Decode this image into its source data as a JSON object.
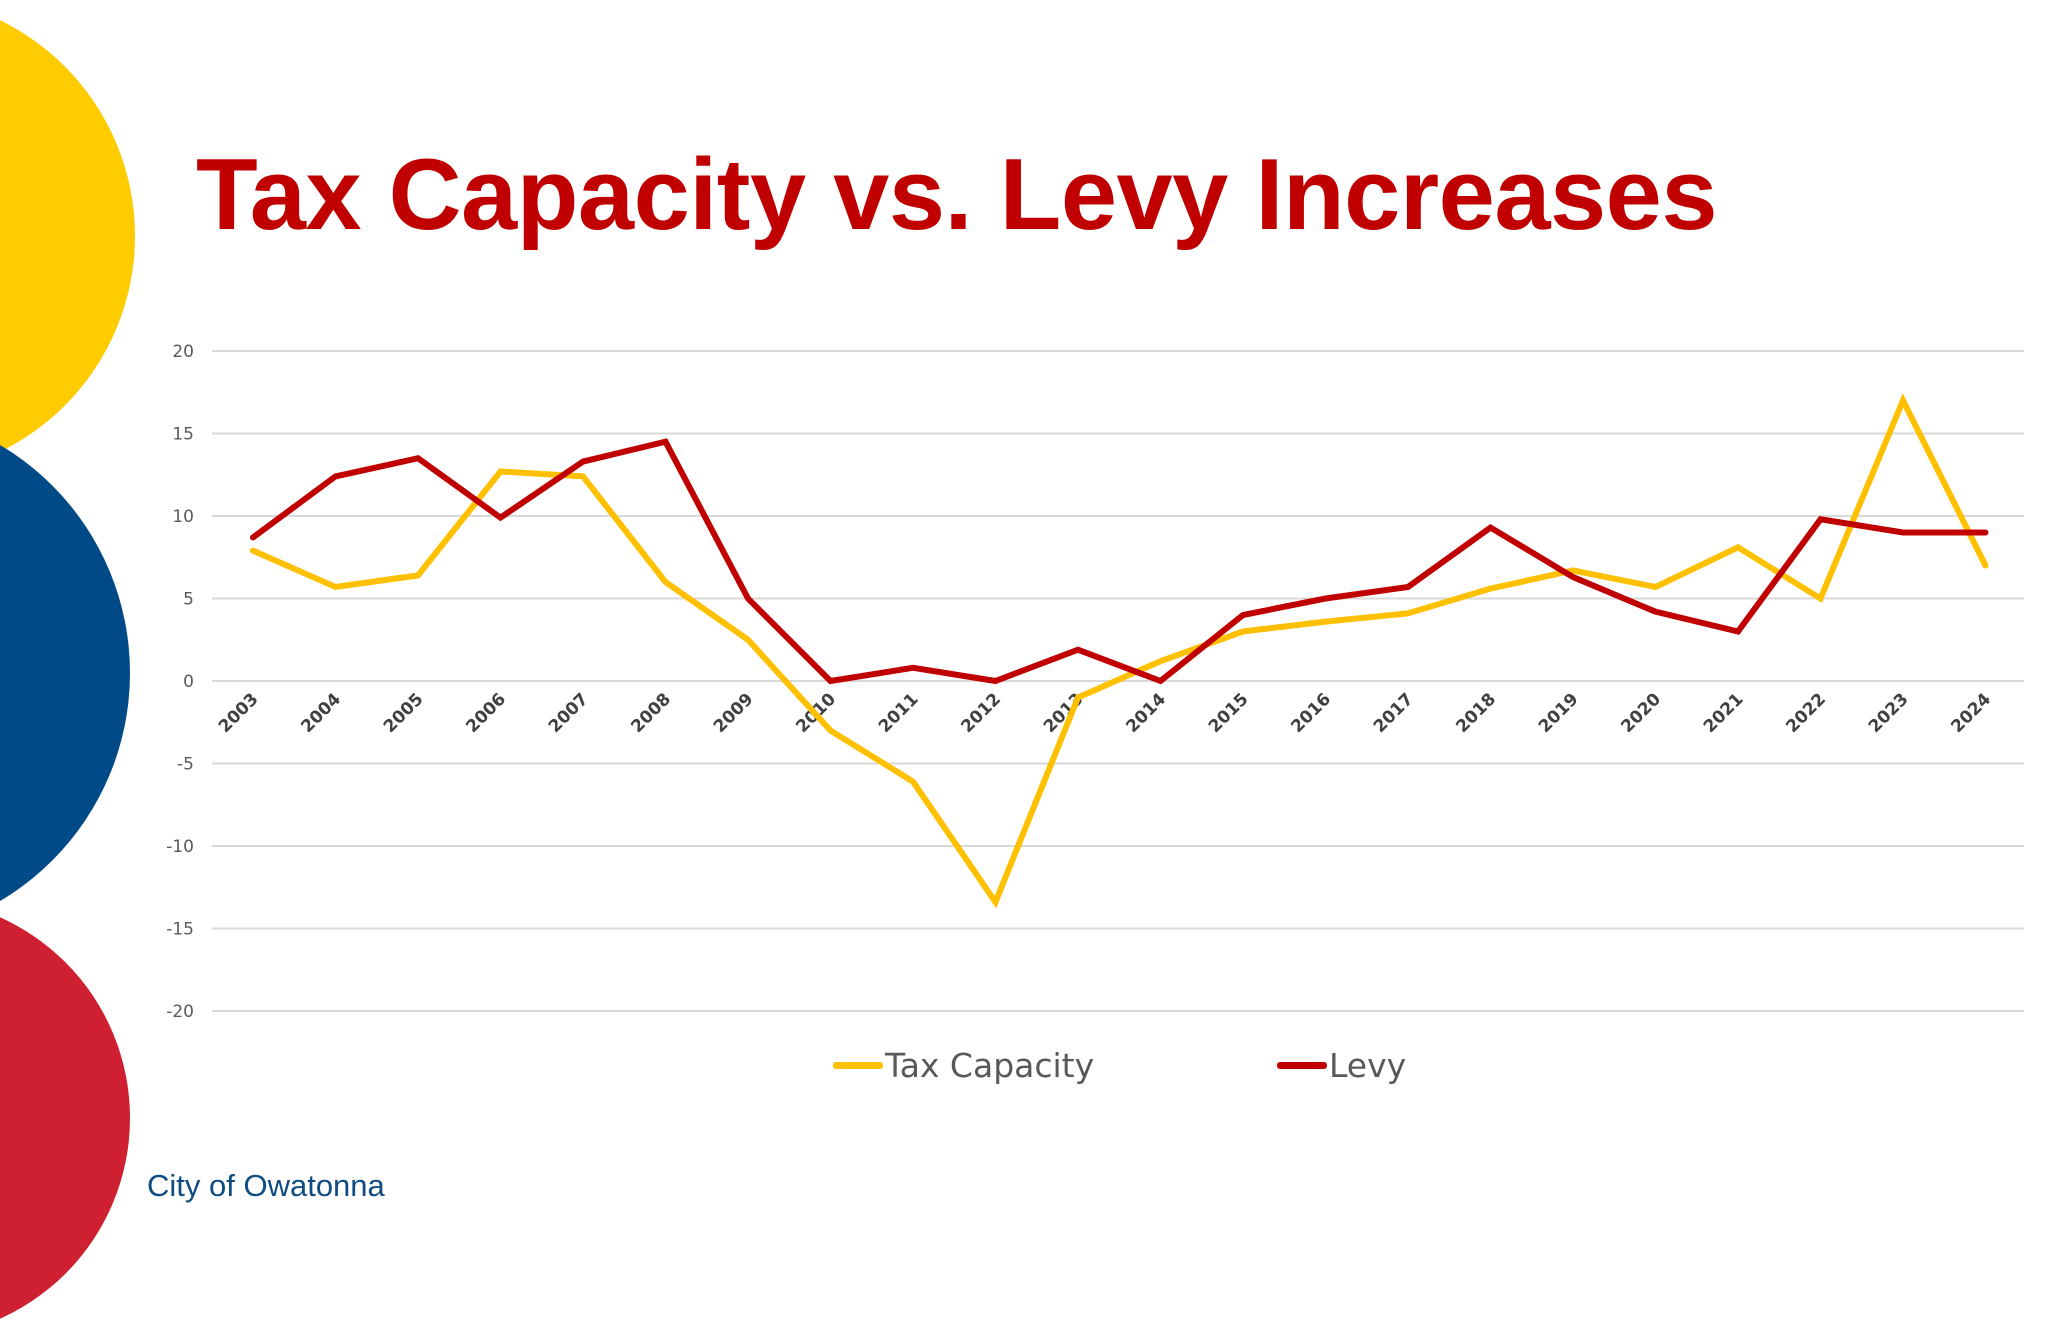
{
  "slide": {
    "title": "Tax Capacity vs. Levy Increases",
    "footer": "City of Owatonna",
    "colors": {
      "title": "#C00000",
      "footer": "#0F4C81",
      "circle_yellow": "#FFCC00",
      "circle_blue": "#004A87",
      "circle_red": "#CE2030"
    }
  },
  "chart_data": {
    "type": "line",
    "title": "Tax Capacity vs. Levy Increases",
    "xlabel": "",
    "ylabel": "",
    "ylim": [
      -20,
      20
    ],
    "yticks": [
      20,
      15,
      10,
      5,
      0,
      -5,
      -10,
      -15,
      -20
    ],
    "grid": true,
    "legend": "bottom",
    "x": [
      "2003",
      "2004",
      "2005",
      "2006",
      "2007",
      "2008",
      "2009",
      "2010",
      "2011",
      "2012",
      "2013",
      "2014",
      "2015",
      "2016",
      "2017",
      "2018",
      "2019",
      "2020",
      "2021",
      "2022",
      "2023",
      "2024"
    ],
    "series": [
      {
        "name": "Tax Capacity",
        "color": "#FFC000",
        "values": [
          7.9,
          5.7,
          6.4,
          12.7,
          12.4,
          6.0,
          2.5,
          -3.0,
          -6.1,
          -13.4,
          -1.0,
          1.2,
          3.0,
          3.6,
          4.1,
          5.6,
          6.7,
          5.7,
          8.1,
          5.0,
          17.0,
          7.0
        ]
      },
      {
        "name": "Levy",
        "color": "#C00000",
        "values": [
          8.7,
          12.4,
          13.5,
          9.9,
          13.3,
          14.5,
          5.0,
          0.0,
          0.8,
          0.0,
          1.9,
          0.0,
          4.0,
          5.0,
          5.7,
          9.3,
          6.3,
          4.2,
          3.0,
          9.8,
          9.0,
          9.0
        ]
      }
    ]
  }
}
